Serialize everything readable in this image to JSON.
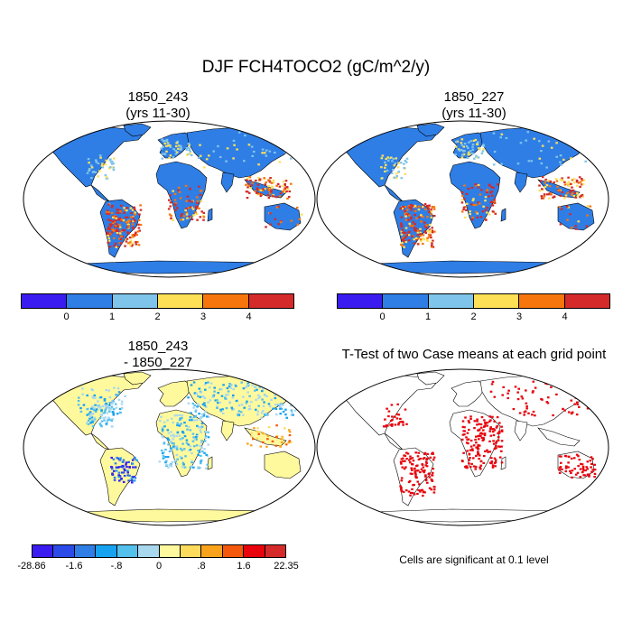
{
  "title": "DJF FCH4TOCO2 (gC/m^2/y)",
  "panels": {
    "case1": {
      "title_line1": "1850_243",
      "title_line2": "(yrs 11-30)"
    },
    "case2": {
      "title_line1": "1850_227",
      "title_line2": "(yrs 11-30)"
    },
    "diff": {
      "title_line1": "1850_243",
      "title_line2": "- 1850_227"
    },
    "ttest": {
      "title": "T-Test of two Case means at each grid point",
      "note": "Cells are significant at 0.1 level"
    }
  },
  "colorbars": {
    "case": {
      "colors": [
        "#3b1cf0",
        "#2f7ee6",
        "#7fc4ea",
        "#fde056",
        "#f6760d",
        "#d42a2a"
      ],
      "labels": [
        "0",
        "1",
        "2",
        "3",
        "4"
      ]
    },
    "diff": {
      "colors": [
        "#3b1cf0",
        "#2b4ae8",
        "#2f7ee6",
        "#17a2f0",
        "#54c0ec",
        "#a8d8ee",
        "#fff99e",
        "#fddb5d",
        "#f9a31d",
        "#f4580c",
        "#e7040d",
        "#d42a2a"
      ],
      "labels": [
        "-28.86",
        "-1.6",
        "-.8",
        "0",
        ".8",
        "1.6",
        "22.35"
      ]
    }
  },
  "map_colors": {
    "ocean": "#ffffff",
    "land_base_case": "#2f7ee6",
    "land_base_diff": "#fff99e",
    "ttest_sig": "#e7040d",
    "coast": "#000000"
  }
}
